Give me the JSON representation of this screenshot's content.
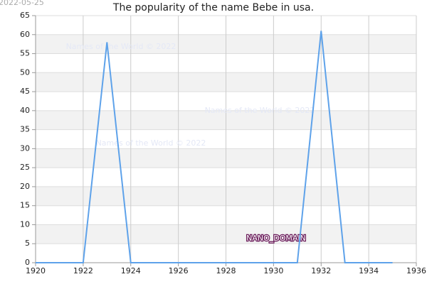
{
  "chart_data": {
    "type": "line",
    "title": "The popularity of the name Bebe in usa.",
    "date": "2022-05-25",
    "annotations": [
      "Names of the World © 2022",
      "Names of the World © 2022",
      "Names of the World © 2022",
      "NANO_DOMAIN"
    ],
    "x": [
      1920,
      1921,
      1922,
      1923,
      1924,
      1925,
      1926,
      1927,
      1928,
      1929,
      1930,
      1931,
      1932,
      1933,
      1934,
      1935
    ],
    "series": [
      {
        "name": "Bebe",
        "color": "#5ea2ea",
        "values": [
          0,
          0,
          0,
          58,
          0,
          0,
          0,
          0,
          0,
          0,
          0,
          0,
          61,
          0,
          0,
          0
        ]
      }
    ],
    "xlim": [
      1920,
      1936
    ],
    "xticks": [
      1920,
      1922,
      1924,
      1926,
      1928,
      1930,
      1932,
      1934,
      1936
    ],
    "ylim": [
      0,
      65
    ],
    "yticks": [
      0,
      5,
      10,
      15,
      20,
      25,
      30,
      35,
      40,
      45,
      50,
      55,
      60,
      65
    ],
    "grid": true
  }
}
